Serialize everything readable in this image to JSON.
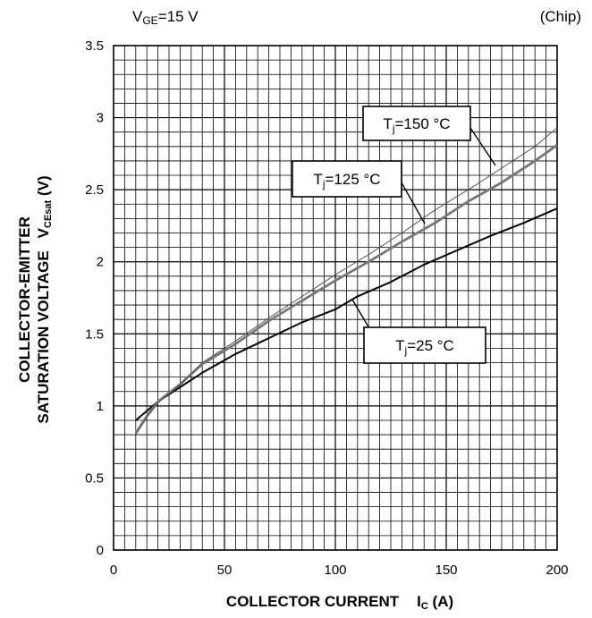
{
  "header": {
    "left_main": "V",
    "left_sub": "GE",
    "left_tail": "=15 V",
    "right": "(Chip)"
  },
  "chart_data": {
    "type": "line",
    "xlabel": {
      "main": "COLLECTOR CURRENT",
      "sym": "I",
      "sub": "C",
      "unit": " (A)"
    },
    "ylabel": {
      "line1": "COLLECTOR-EMITTER",
      "line2": "SATURATION VOLTAGE",
      "sym": "V",
      "sub": "CEsat",
      "unit": " (V)"
    },
    "xlim": [
      0,
      200
    ],
    "ylim": [
      0,
      3.5
    ],
    "x_ticks": [
      "0",
      "50",
      "100",
      "150",
      "200"
    ],
    "y_ticks": [
      "0",
      "0.5",
      "1",
      "1.5",
      "2",
      "2.5",
      "3",
      "3.5"
    ],
    "grid": true,
    "series": [
      {
        "name": "Tj=25 °C",
        "label": {
          "pre": "T",
          "sub": "j",
          "post": "=25 °C"
        },
        "color": "#000000",
        "points": [
          [
            10,
            0.9
          ],
          [
            20,
            1.03
          ],
          [
            30,
            1.13
          ],
          [
            40,
            1.23
          ],
          [
            55,
            1.36
          ],
          [
            70,
            1.47
          ],
          [
            85,
            1.58
          ],
          [
            100,
            1.67
          ],
          [
            110,
            1.76
          ],
          [
            125,
            1.86
          ],
          [
            140,
            1.98
          ],
          [
            155,
            2.08
          ],
          [
            170,
            2.18
          ],
          [
            185,
            2.27
          ],
          [
            200,
            2.37
          ]
        ]
      },
      {
        "name": "Tj=125 °C",
        "label": {
          "pre": "T",
          "sub": "j",
          "post": "=125 °C"
        },
        "color": "#777777",
        "points": [
          [
            10,
            0.81
          ],
          [
            15,
            0.93
          ],
          [
            20,
            1.03
          ],
          [
            30,
            1.15
          ],
          [
            40,
            1.29
          ],
          [
            55,
            1.43
          ],
          [
            70,
            1.59
          ],
          [
            85,
            1.73
          ],
          [
            100,
            1.87
          ],
          [
            115,
            2.0
          ],
          [
            130,
            2.14
          ],
          [
            145,
            2.27
          ],
          [
            160,
            2.42
          ],
          [
            175,
            2.55
          ],
          [
            190,
            2.7
          ],
          [
            200,
            2.81
          ]
        ]
      },
      {
        "name": "Tj=150 °C",
        "label": {
          "pre": "T",
          "sub": "j",
          "post": "=150 °C"
        },
        "color": "#555555",
        "points": [
          [
            10,
            0.8
          ],
          [
            15,
            0.92
          ],
          [
            20,
            1.02
          ],
          [
            30,
            1.15
          ],
          [
            40,
            1.3
          ],
          [
            55,
            1.45
          ],
          [
            70,
            1.61
          ],
          [
            85,
            1.76
          ],
          [
            100,
            1.91
          ],
          [
            115,
            2.05
          ],
          [
            130,
            2.2
          ],
          [
            145,
            2.36
          ],
          [
            160,
            2.5
          ],
          [
            175,
            2.65
          ],
          [
            190,
            2.8
          ],
          [
            200,
            2.93
          ]
        ]
      }
    ]
  }
}
